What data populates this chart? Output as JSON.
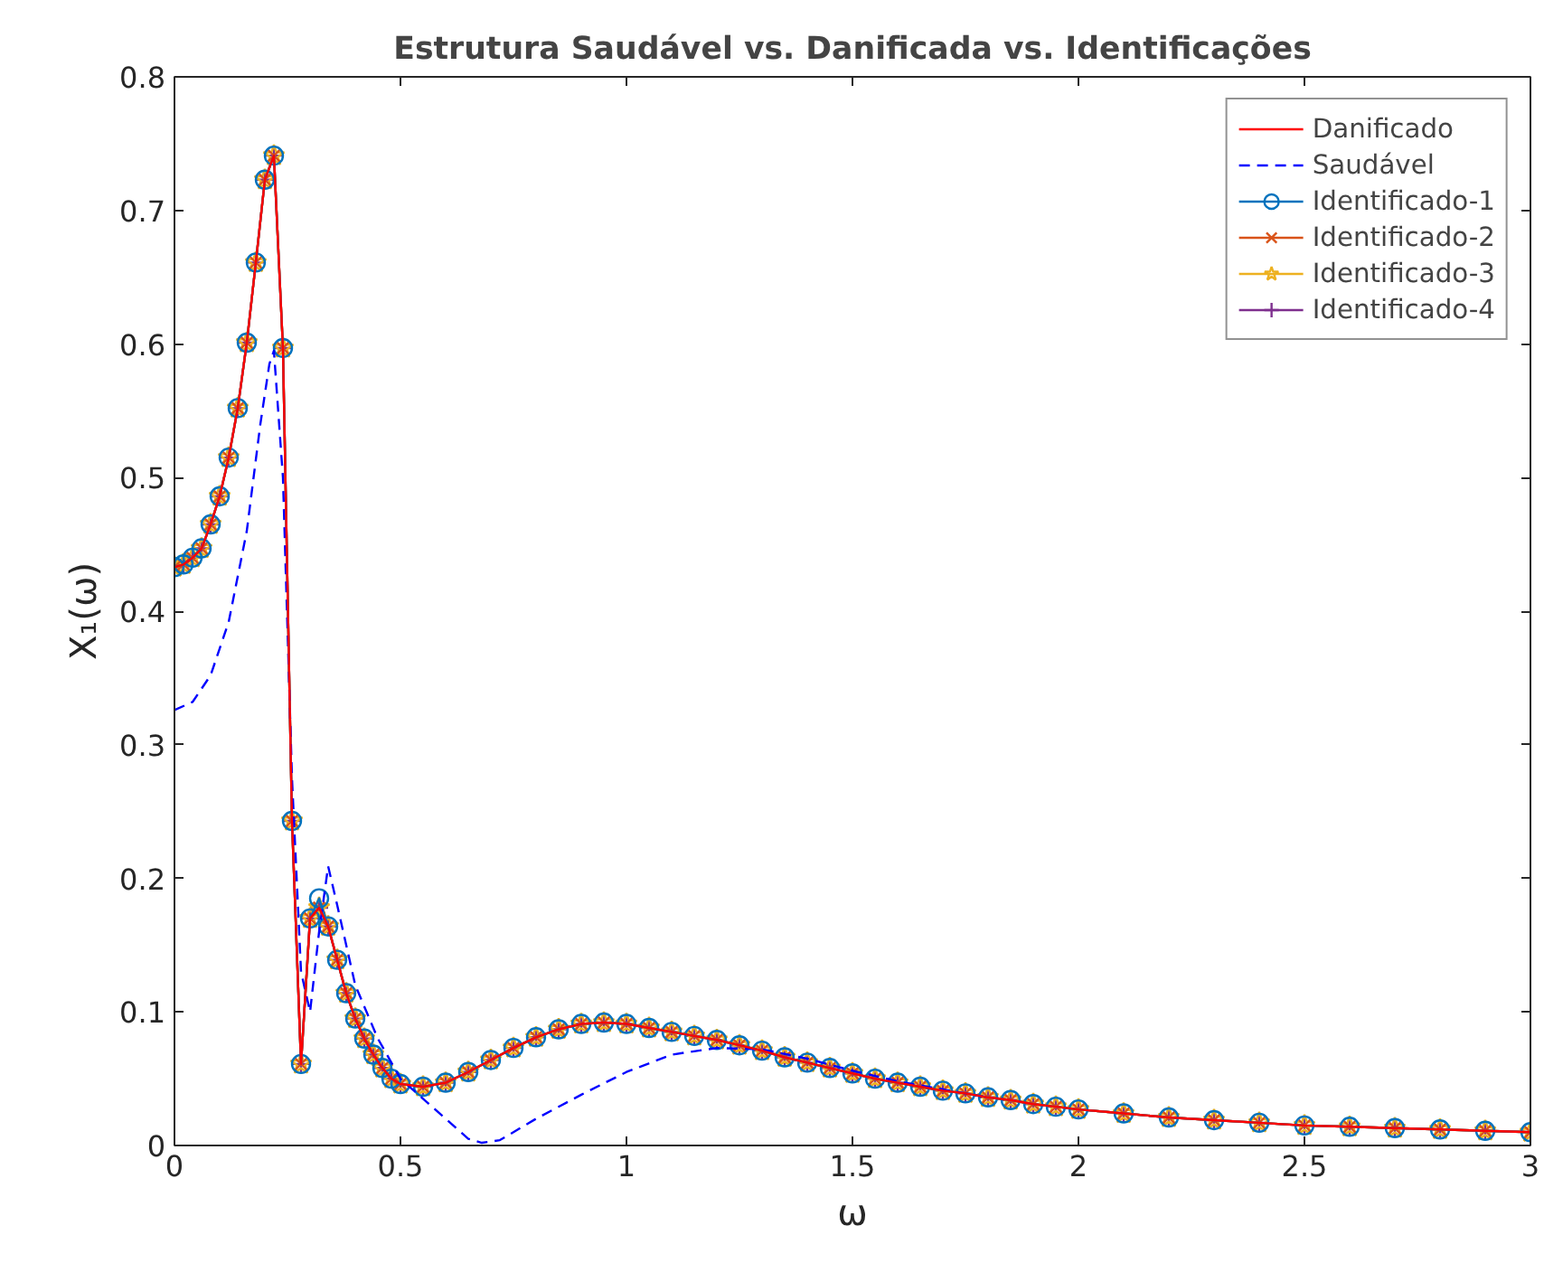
{
  "chart_data": {
    "type": "line",
    "title": "Estrutura Saudável vs. Danificada vs. Identificações",
    "xlabel": "ω",
    "ylabel": "X₁(ω)",
    "x": [
      0,
      0.02,
      0.04,
      0.06,
      0.08,
      0.1,
      0.12,
      0.14,
      0.16,
      0.18,
      0.2,
      0.22,
      0.24,
      0.26,
      0.28,
      0.3,
      0.32,
      0.34,
      0.36,
      0.38,
      0.4,
      0.42,
      0.44,
      0.46,
      0.48,
      0.5,
      0.55,
      0.6,
      0.65,
      0.7,
      0.75,
      0.8,
      0.85,
      0.9,
      0.95,
      1.0,
      1.05,
      1.1,
      1.15,
      1.2,
      1.25,
      1.3,
      1.35,
      1.4,
      1.45,
      1.5,
      1.55,
      1.6,
      1.65,
      1.7,
      1.75,
      1.8,
      1.85,
      1.9,
      1.95,
      2.0,
      2.1,
      2.2,
      2.3,
      2.4,
      2.5,
      2.6,
      2.7,
      2.8,
      2.9,
      3.0
    ],
    "series": [
      {
        "name": "Danificado",
        "color": "#ff0000",
        "line_style": "solid",
        "marker": "none",
        "values": [
          0.433,
          0.435,
          0.44,
          0.447,
          0.465,
          0.486,
          0.515,
          0.552,
          0.601,
          0.661,
          0.723,
          0.741,
          0.597,
          0.243,
          0.061,
          0.17,
          0.178,
          0.164,
          0.139,
          0.114,
          0.095,
          0.08,
          0.068,
          0.058,
          0.05,
          0.046,
          0.044,
          0.047,
          0.055,
          0.064,
          0.073,
          0.081,
          0.087,
          0.091,
          0.092,
          0.091,
          0.088,
          0.085,
          0.082,
          0.079,
          0.075,
          0.071,
          0.066,
          0.062,
          0.058,
          0.054,
          0.05,
          0.047,
          0.044,
          0.041,
          0.039,
          0.036,
          0.034,
          0.031,
          0.029,
          0.027,
          0.024,
          0.021,
          0.019,
          0.017,
          0.015,
          0.014,
          0.013,
          0.012,
          0.011,
          0.01
        ]
      },
      {
        "name": "Saudável",
        "color": "#0000ff",
        "line_style": "dashed",
        "marker": "none",
        "x": [
          0,
          0.04,
          0.08,
          0.12,
          0.16,
          0.19,
          0.21,
          0.22,
          0.24,
          0.26,
          0.28,
          0.3,
          0.32,
          0.34,
          0.36,
          0.4,
          0.45,
          0.5,
          0.55,
          0.6,
          0.65,
          0.68,
          0.72,
          0.8,
          0.9,
          1.0,
          1.1,
          1.2,
          1.3,
          1.4,
          1.5,
          1.6,
          1.8
        ],
        "values": [
          0.326,
          0.332,
          0.352,
          0.392,
          0.46,
          0.54,
          0.585,
          0.595,
          0.5,
          0.275,
          0.13,
          0.1,
          0.16,
          0.209,
          0.18,
          0.12,
          0.08,
          0.05,
          0.035,
          0.02,
          0.005,
          0.002,
          0.004,
          0.02,
          0.038,
          0.055,
          0.068,
          0.073,
          0.072,
          0.065,
          0.056,
          0.048,
          0.036
        ]
      },
      {
        "name": "Identificado-1",
        "color": "#0072bd",
        "line_style": "solid",
        "marker": "circle",
        "values": [
          0.433,
          0.435,
          0.44,
          0.447,
          0.465,
          0.486,
          0.515,
          0.552,
          0.601,
          0.661,
          0.723,
          0.741,
          0.597,
          0.243,
          0.061,
          0.17,
          0.185,
          0.164,
          0.139,
          0.114,
          0.095,
          0.08,
          0.068,
          0.058,
          0.05,
          0.046,
          0.044,
          0.047,
          0.055,
          0.064,
          0.073,
          0.081,
          0.087,
          0.091,
          0.092,
          0.091,
          0.088,
          0.085,
          0.082,
          0.079,
          0.075,
          0.071,
          0.066,
          0.062,
          0.058,
          0.054,
          0.05,
          0.047,
          0.044,
          0.041,
          0.039,
          0.036,
          0.034,
          0.031,
          0.029,
          0.027,
          0.024,
          0.021,
          0.019,
          0.017,
          0.015,
          0.014,
          0.013,
          0.012,
          0.011,
          0.01
        ]
      },
      {
        "name": "Identificado-2",
        "color": "#d95319",
        "line_style": "solid",
        "marker": "cross",
        "values": [
          0.433,
          0.435,
          0.44,
          0.447,
          0.465,
          0.486,
          0.515,
          0.552,
          0.601,
          0.661,
          0.723,
          0.741,
          0.597,
          0.243,
          0.061,
          0.17,
          0.178,
          0.164,
          0.139,
          0.114,
          0.095,
          0.08,
          0.068,
          0.058,
          0.05,
          0.046,
          0.044,
          0.047,
          0.055,
          0.064,
          0.073,
          0.081,
          0.087,
          0.091,
          0.092,
          0.091,
          0.088,
          0.085,
          0.082,
          0.079,
          0.075,
          0.071,
          0.066,
          0.062,
          0.058,
          0.054,
          0.05,
          0.047,
          0.044,
          0.041,
          0.039,
          0.036,
          0.034,
          0.031,
          0.029,
          0.027,
          0.024,
          0.021,
          0.019,
          0.017,
          0.015,
          0.014,
          0.013,
          0.012,
          0.011,
          0.01
        ]
      },
      {
        "name": "Identificado-3",
        "color": "#edb120",
        "line_style": "solid",
        "marker": "star",
        "values": [
          0.433,
          0.435,
          0.44,
          0.447,
          0.465,
          0.486,
          0.515,
          0.552,
          0.601,
          0.661,
          0.723,
          0.741,
          0.597,
          0.243,
          0.061,
          0.17,
          0.178,
          0.164,
          0.139,
          0.114,
          0.095,
          0.08,
          0.068,
          0.058,
          0.05,
          0.046,
          0.044,
          0.047,
          0.055,
          0.064,
          0.073,
          0.081,
          0.087,
          0.091,
          0.092,
          0.091,
          0.088,
          0.085,
          0.082,
          0.079,
          0.075,
          0.071,
          0.066,
          0.062,
          0.058,
          0.054,
          0.05,
          0.047,
          0.044,
          0.041,
          0.039,
          0.036,
          0.034,
          0.031,
          0.029,
          0.027,
          0.024,
          0.021,
          0.019,
          0.017,
          0.015,
          0.014,
          0.013,
          0.012,
          0.011,
          0.01
        ]
      },
      {
        "name": "Identificado-4",
        "color": "#7e2f8e",
        "line_style": "solid",
        "marker": "plus",
        "values": [
          0.433,
          0.435,
          0.44,
          0.447,
          0.465,
          0.486,
          0.515,
          0.552,
          0.601,
          0.661,
          0.723,
          0.741,
          0.597,
          0.243,
          0.061,
          0.17,
          0.178,
          0.164,
          0.139,
          0.114,
          0.095,
          0.08,
          0.068,
          0.058,
          0.05,
          0.046,
          0.044,
          0.047,
          0.055,
          0.064,
          0.073,
          0.081,
          0.087,
          0.091,
          0.092,
          0.091,
          0.088,
          0.085,
          0.082,
          0.079,
          0.075,
          0.071,
          0.066,
          0.062,
          0.058,
          0.054,
          0.05,
          0.047,
          0.044,
          0.041,
          0.039,
          0.036,
          0.034,
          0.031,
          0.029,
          0.027,
          0.024,
          0.021,
          0.019,
          0.017,
          0.015,
          0.014,
          0.013,
          0.012,
          0.011,
          0.01
        ]
      }
    ],
    "xlim": [
      0,
      3
    ],
    "ylim": [
      0,
      0.8
    ],
    "xticks": [
      0,
      0.5,
      1,
      1.5,
      2,
      2.5,
      3
    ],
    "yticks": [
      0,
      0.1,
      0.2,
      0.3,
      0.4,
      0.5,
      0.6,
      0.7,
      0.8
    ],
    "grid": false,
    "legend": "top right"
  }
}
